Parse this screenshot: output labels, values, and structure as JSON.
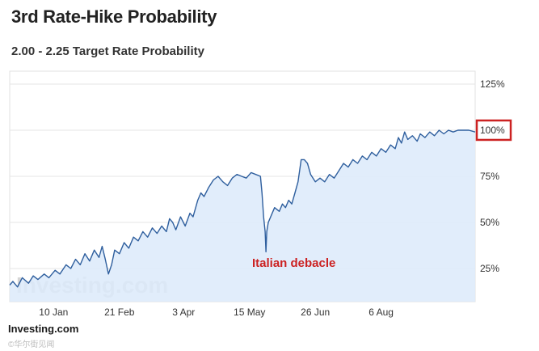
{
  "page": {
    "title": "3rd Rate-Hike Probability",
    "subtitle": "2.00 - 2.25 Target Rate Probability",
    "footer_source": "Investing.com",
    "watermark_text": "Investing.com",
    "corner_mark": "©华尔街见闻"
  },
  "chart_data": {
    "type": "area",
    "title": "3rd Rate-Hike Probability",
    "subtitle": "2.00 - 2.25 Target Rate Probability",
    "xlabel": "",
    "ylabel": "",
    "y_tick_labels": [
      "25%",
      "50%",
      "75%",
      "100%",
      "125%"
    ],
    "y_ticks": [
      25,
      50,
      75,
      100,
      125
    ],
    "x_tick_labels": [
      "10 Jan",
      "21 Feb",
      "3 Apr",
      "15 May",
      "26 Jun",
      "6 Aug"
    ],
    "x_ticks": [
      16,
      58,
      99,
      141,
      183,
      225
    ],
    "xlim": [
      -12,
      285
    ],
    "ylim": [
      7,
      132
    ],
    "grid": "horizontal",
    "legend": "none",
    "highlight_label": "100%",
    "annotation": {
      "text": "Italian debacle",
      "x": 147,
      "y": 20
    },
    "colors": {
      "line": "#2f5f9e",
      "fill": "#dceafa",
      "grid": "#e6e6e6",
      "highlight": "#cc2222",
      "annotation": "#cc2222"
    },
    "series": [
      {
        "values": [
          [
            -12,
            16
          ],
          [
            -10,
            18
          ],
          [
            -7,
            15
          ],
          [
            -4,
            20
          ],
          [
            0,
            17
          ],
          [
            3,
            21
          ],
          [
            6,
            19
          ],
          [
            10,
            22
          ],
          [
            13,
            20
          ],
          [
            17,
            24
          ],
          [
            20,
            22
          ],
          [
            24,
            27
          ],
          [
            27,
            25
          ],
          [
            30,
            30
          ],
          [
            33,
            27
          ],
          [
            36,
            33
          ],
          [
            39,
            29
          ],
          [
            42,
            35
          ],
          [
            45,
            31
          ],
          [
            47,
            37
          ],
          [
            49,
            30
          ],
          [
            51,
            22
          ],
          [
            53,
            27
          ],
          [
            55,
            35
          ],
          [
            58,
            33
          ],
          [
            61,
            39
          ],
          [
            64,
            36
          ],
          [
            67,
            42
          ],
          [
            70,
            40
          ],
          [
            73,
            45
          ],
          [
            76,
            42
          ],
          [
            79,
            47
          ],
          [
            82,
            44
          ],
          [
            85,
            48
          ],
          [
            88,
            45
          ],
          [
            90,
            52
          ],
          [
            92,
            50
          ],
          [
            94,
            46
          ],
          [
            97,
            53
          ],
          [
            100,
            48
          ],
          [
            103,
            55
          ],
          [
            105,
            53
          ],
          [
            108,
            62
          ],
          [
            110,
            66
          ],
          [
            112,
            64
          ],
          [
            115,
            69
          ],
          [
            118,
            73
          ],
          [
            121,
            75
          ],
          [
            124,
            72
          ],
          [
            127,
            70
          ],
          [
            130,
            74
          ],
          [
            133,
            76
          ],
          [
            136,
            75
          ],
          [
            139,
            74
          ],
          [
            142,
            77
          ],
          [
            145,
            76
          ],
          [
            148,
            75
          ],
          [
            149,
            66
          ],
          [
            150,
            53
          ],
          [
            151,
            45
          ],
          [
            151.5,
            34
          ],
          [
            152,
            45
          ],
          [
            153,
            50
          ],
          [
            155,
            54
          ],
          [
            157,
            58
          ],
          [
            160,
            56
          ],
          [
            162,
            60
          ],
          [
            164,
            58
          ],
          [
            166,
            62
          ],
          [
            168,
            60
          ],
          [
            170,
            66
          ],
          [
            172,
            72
          ],
          [
            174,
            84
          ],
          [
            176,
            84
          ],
          [
            178,
            82
          ],
          [
            180,
            76
          ],
          [
            183,
            72
          ],
          [
            186,
            74
          ],
          [
            189,
            72
          ],
          [
            192,
            76
          ],
          [
            195,
            74
          ],
          [
            198,
            78
          ],
          [
            201,
            82
          ],
          [
            204,
            80
          ],
          [
            207,
            84
          ],
          [
            210,
            82
          ],
          [
            213,
            86
          ],
          [
            216,
            84
          ],
          [
            219,
            88
          ],
          [
            222,
            86
          ],
          [
            225,
            90
          ],
          [
            228,
            88
          ],
          [
            231,
            92
          ],
          [
            234,
            90
          ],
          [
            236,
            96
          ],
          [
            238,
            93
          ],
          [
            240,
            99
          ],
          [
            242,
            95
          ],
          [
            245,
            97
          ],
          [
            248,
            94
          ],
          [
            250,
            98
          ],
          [
            253,
            96
          ],
          [
            256,
            99
          ],
          [
            259,
            97
          ],
          [
            262,
            100
          ],
          [
            265,
            98
          ],
          [
            268,
            100
          ],
          [
            271,
            99
          ],
          [
            274,
            100
          ],
          [
            277,
            100
          ],
          [
            281,
            100
          ],
          [
            285,
            99
          ]
        ]
      }
    ]
  }
}
